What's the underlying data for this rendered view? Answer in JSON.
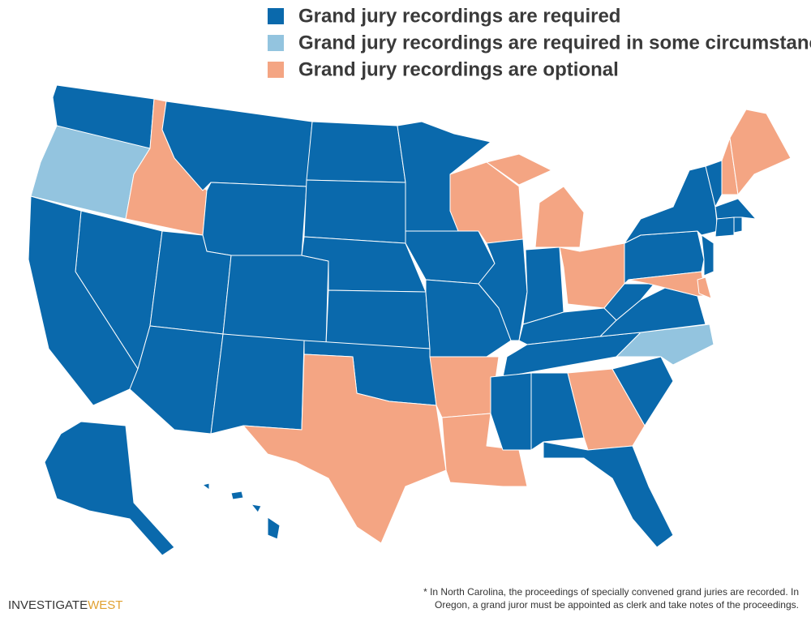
{
  "legend": [
    {
      "label": "Grand jury recordings are required",
      "color": "#0a69ac"
    },
    {
      "label": "Grand jury recordings are required in some circumstances*",
      "color": "#93c4df"
    },
    {
      "label": "Grand jury recordings are optional",
      "color": "#f4a583"
    }
  ],
  "footnote": [
    "* In North Carolina, the proceedings of specially convened grand juries are recorded. In",
    "Oregon, a grand juror must be appointed as clerk and take notes of the proceedings."
  ],
  "logo": {
    "first": "INVESTIGATE",
    "second": "WEST"
  }
}
